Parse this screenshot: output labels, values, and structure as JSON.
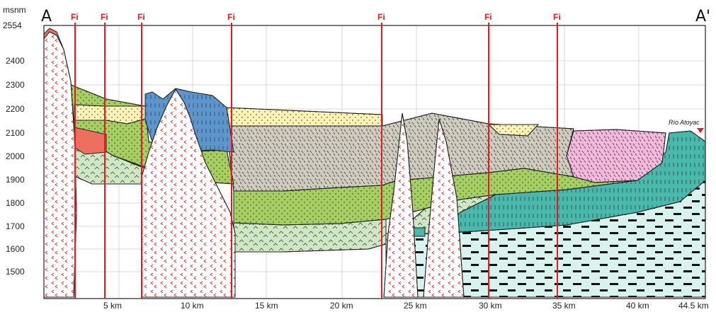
{
  "profile": {
    "start_label": "A",
    "end_label": "A'",
    "y_unit": "msnm",
    "y_top": "2554",
    "y_ticks": [
      "2400",
      "2300",
      "2200",
      "2100",
      "2000",
      "1900",
      "1800",
      "1700",
      "1600",
      "1500"
    ],
    "x_ticks": [
      "5 km",
      "10 km",
      "15 km",
      "20 km",
      "25 km",
      "30 km",
      "35 km",
      "40 km",
      "44.5 km"
    ],
    "faults": [
      "Fi",
      "Fi",
      "Fi",
      "Fi",
      "Fi",
      "Fi",
      "Fi"
    ],
    "river_label": "Río Atoyac",
    "colors": {
      "fault_red": "#e31b23",
      "granite_red": "#ef6f5e",
      "green_layer": "#a5cf63",
      "pale_green": "#cfe8c3",
      "grey": "#cfcbbf",
      "blue": "#5d96cc",
      "teal": "#49b8ad",
      "pale_cyan": "#d8f3ee",
      "yellow": "#fbf3b6",
      "pink": "#f2b9dc"
    }
  }
}
